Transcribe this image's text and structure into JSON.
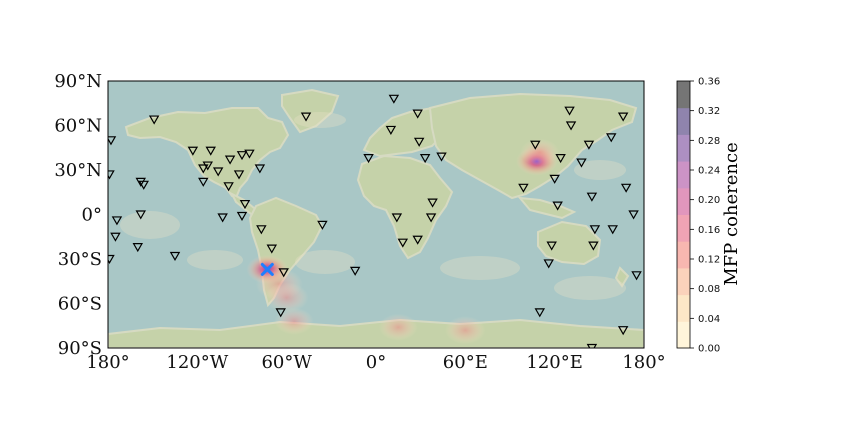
{
  "map": {
    "projection": "plate-carree",
    "extent": {
      "lon": [
        -180,
        180
      ],
      "lat": [
        -90,
        90
      ]
    },
    "x_ticks": [
      {
        "lon": -180,
        "label": "180°"
      },
      {
        "lon": -120,
        "label": "120°W"
      },
      {
        "lon": -60,
        "label": "60°W"
      },
      {
        "lon": 0,
        "label": "0°"
      },
      {
        "lon": 60,
        "label": "60°E"
      },
      {
        "lon": 120,
        "label": "120°E"
      },
      {
        "lon": 180,
        "label": "180°"
      }
    ],
    "y_ticks": [
      {
        "lat": 90,
        "label": "90°N"
      },
      {
        "lat": 60,
        "label": "60°N"
      },
      {
        "lat": 30,
        "label": "30°N"
      },
      {
        "lat": 0,
        "label": "0°"
      },
      {
        "lat": -30,
        "label": "30°S"
      },
      {
        "lat": -60,
        "label": "60°S"
      },
      {
        "lat": -90,
        "label": "90°S"
      }
    ],
    "source_marker": {
      "lon": -73,
      "lat": -37,
      "symbol": "x",
      "color": "#1f7fff"
    },
    "hotspots": [
      {
        "lon": -73,
        "lat": -37,
        "value": 0.36
      },
      {
        "lon": 108,
        "lat": 36,
        "value": 0.3
      },
      {
        "lon": -65,
        "lat": -47,
        "value": 0.1
      },
      {
        "lon": -60,
        "lat": -56,
        "value": 0.08
      },
      {
        "lon": 60,
        "lat": -78,
        "value": 0.06
      },
      {
        "lon": 15,
        "lat": -76,
        "value": 0.05
      },
      {
        "lon": -55,
        "lat": -72,
        "value": 0.05
      },
      {
        "lon": 110,
        "lat": 42,
        "value": 0.05
      }
    ]
  },
  "chart_data": {
    "type": "scatter",
    "title": "",
    "xlabel": "",
    "ylabel": "",
    "xlim": [
      -180,
      180
    ],
    "ylim": [
      -90,
      90
    ],
    "series": [
      {
        "marker": "inverted-triangle",
        "color": "#000000",
        "points": [
          {
            "lon": -178,
            "lat": 50
          },
          {
            "lon": -179,
            "lat": 27
          },
          {
            "lon": -179,
            "lat": -30
          },
          {
            "lon": -174,
            "lat": -4
          },
          {
            "lon": -175,
            "lat": -15
          },
          {
            "lon": -158,
            "lat": 22
          },
          {
            "lon": -156,
            "lat": 20
          },
          {
            "lon": -158,
            "lat": 0
          },
          {
            "lon": -160,
            "lat": -22
          },
          {
            "lon": -149,
            "lat": 64
          },
          {
            "lon": -135,
            "lat": -28
          },
          {
            "lon": -123,
            "lat": 43
          },
          {
            "lon": -111,
            "lat": 43
          },
          {
            "lon": -113,
            "lat": 33
          },
          {
            "lon": -116,
            "lat": 31
          },
          {
            "lon": -116,
            "lat": 22
          },
          {
            "lon": -106,
            "lat": 29
          },
          {
            "lon": -98,
            "lat": 37
          },
          {
            "lon": -90,
            "lat": 40
          },
          {
            "lon": -85,
            "lat": 41
          },
          {
            "lon": -92,
            "lat": 27
          },
          {
            "lon": -99,
            "lat": 19
          },
          {
            "lon": -78,
            "lat": 31
          },
          {
            "lon": -88,
            "lat": 7
          },
          {
            "lon": -103,
            "lat": -2
          },
          {
            "lon": -90,
            "lat": -1
          },
          {
            "lon": -77,
            "lat": -10
          },
          {
            "lon": -70,
            "lat": -23
          },
          {
            "lon": -62,
            "lat": -39
          },
          {
            "lon": -64,
            "lat": -66
          },
          {
            "lon": -36,
            "lat": -7
          },
          {
            "lon": -14,
            "lat": -38
          },
          {
            "lon": -47,
            "lat": 66
          },
          {
            "lon": -5,
            "lat": 38
          },
          {
            "lon": 12,
            "lat": 78
          },
          {
            "lon": 28,
            "lat": 68
          },
          {
            "lon": 10,
            "lat": 57
          },
          {
            "lon": 29,
            "lat": 49
          },
          {
            "lon": 33,
            "lat": 38
          },
          {
            "lon": 44,
            "lat": 39
          },
          {
            "lon": 14,
            "lat": -2
          },
          {
            "lon": 37,
            "lat": -2
          },
          {
            "lon": 38,
            "lat": 8
          },
          {
            "lon": 18,
            "lat": -19
          },
          {
            "lon": 28,
            "lat": -17
          },
          {
            "lon": 107,
            "lat": 47
          },
          {
            "lon": 130,
            "lat": 70
          },
          {
            "lon": 131,
            "lat": 60
          },
          {
            "lon": 143,
            "lat": 47
          },
          {
            "lon": 138,
            "lat": 35
          },
          {
            "lon": 124,
            "lat": 38
          },
          {
            "lon": 120,
            "lat": 24
          },
          {
            "lon": 99,
            "lat": 18
          },
          {
            "lon": 122,
            "lat": 6
          },
          {
            "lon": 145,
            "lat": 12
          },
          {
            "lon": 158,
            "lat": 52
          },
          {
            "lon": 166,
            "lat": 66
          },
          {
            "lon": 168,
            "lat": 18
          },
          {
            "lon": 173,
            "lat": 0
          },
          {
            "lon": 147,
            "lat": -10
          },
          {
            "lon": 159,
            "lat": -10
          },
          {
            "lon": 146,
            "lat": -21
          },
          {
            "lon": 118,
            "lat": -21
          },
          {
            "lon": 116,
            "lat": -33
          },
          {
            "lon": 175,
            "lat": -41
          },
          {
            "lon": 166,
            "lat": -78
          },
          {
            "lon": 110,
            "lat": -66
          },
          {
            "lon": 145,
            "lat": -90
          }
        ]
      }
    ]
  },
  "colorbar": {
    "label": "MFP coherence",
    "range": [
      0.0,
      0.36
    ],
    "ticks": [
      "0.00",
      "0.04",
      "0.08",
      "0.12",
      "0.16",
      "0.20",
      "0.24",
      "0.28",
      "0.32",
      "0.36"
    ],
    "colors": [
      "#fff5da",
      "#fde7c7",
      "#fbd2bb",
      "#f8b7b0",
      "#f0a3b4",
      "#e196bd",
      "#cc93c6",
      "#ad8fc2",
      "#8f84ad",
      "#757575"
    ]
  }
}
